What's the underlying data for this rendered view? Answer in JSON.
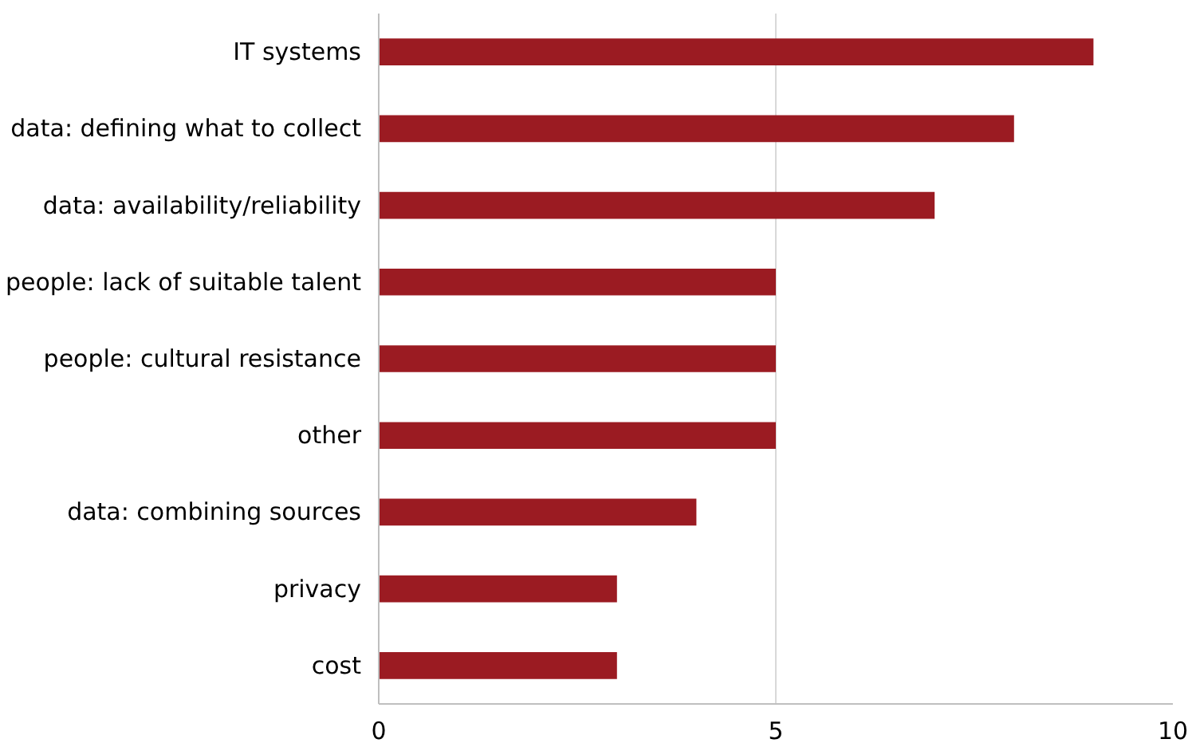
{
  "chart_data": {
    "type": "bar",
    "orientation": "horizontal",
    "categories": [
      "IT systems",
      "data: defining what to collect",
      "data: availability/reliability",
      "people: lack of suitable talent",
      "people: cultural resistance",
      "other",
      "data: combining sources",
      "privacy",
      "cost"
    ],
    "values": [
      9,
      8,
      7,
      5,
      5,
      5,
      4,
      3,
      3
    ],
    "color": "#9b1b22",
    "xlim": [
      0,
      10
    ],
    "xticks": [
      0,
      5,
      10
    ],
    "grid": "x"
  }
}
